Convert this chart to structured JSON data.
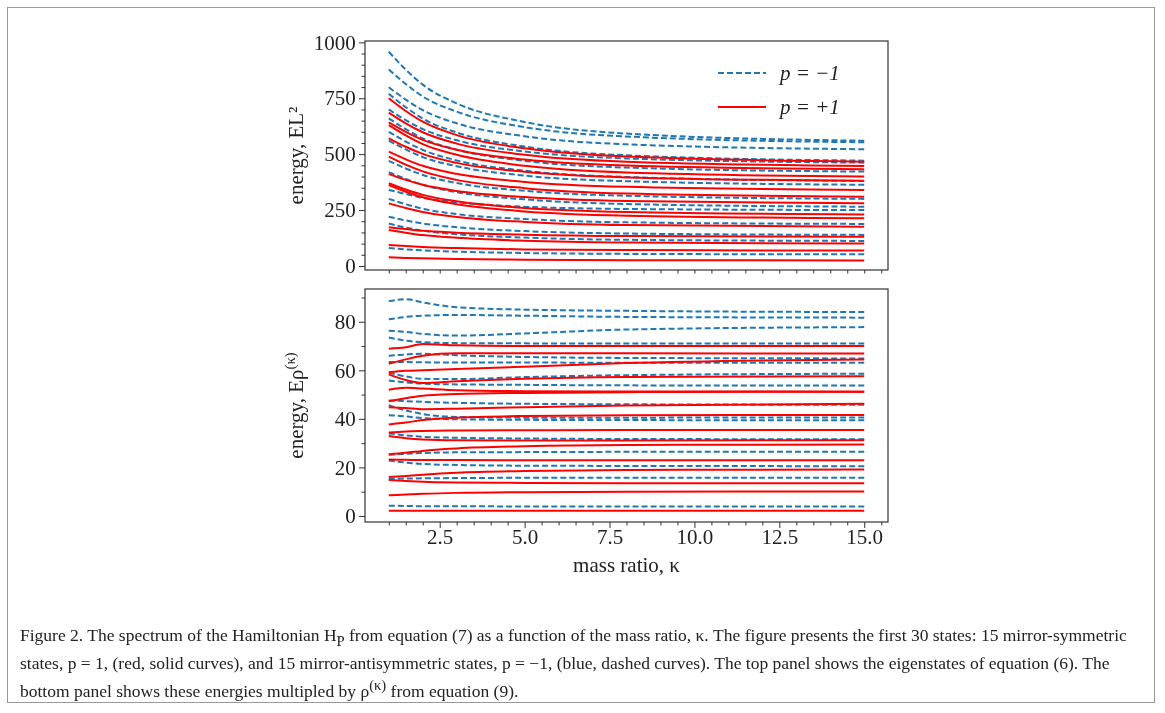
{
  "chart_data": [
    {
      "type": "line",
      "ylabel": "energy, EL²",
      "x": [
        1,
        1.5,
        2,
        3,
        5,
        8,
        15
      ],
      "xlim": [
        0.3,
        15.7
      ],
      "ylim": [
        -18,
        1006
      ],
      "xticks": [
        {
          "value": 1,
          "label": null
        },
        {
          "value": 1.5,
          "label": null
        },
        {
          "value": 2,
          "label": null
        },
        {
          "value": 2.5,
          "label": null
        },
        {
          "value": 3,
          "label": null
        },
        {
          "value": 3.5,
          "label": null
        },
        {
          "value": 4,
          "label": null
        },
        {
          "value": 4.5,
          "label": null
        },
        {
          "value": 5,
          "label": null
        },
        {
          "value": 5.5,
          "label": null
        },
        {
          "value": 6,
          "label": null
        },
        {
          "value": 6.5,
          "label": null
        },
        {
          "value": 7,
          "label": null
        },
        {
          "value": 7.5,
          "label": null
        },
        {
          "value": 8,
          "label": null
        },
        {
          "value": 8.5,
          "label": null
        },
        {
          "value": 9,
          "label": null
        },
        {
          "value": 9.5,
          "label": null
        },
        {
          "value": 10,
          "label": null
        },
        {
          "value": 10.5,
          "label": null
        },
        {
          "value": 11,
          "label": null
        },
        {
          "value": 11.5,
          "label": null
        },
        {
          "value": 12,
          "label": null
        },
        {
          "value": 12.5,
          "label": null
        },
        {
          "value": 13,
          "label": null
        },
        {
          "value": 13.5,
          "label": null
        },
        {
          "value": 14,
          "label": null
        },
        {
          "value": 14.5,
          "label": null
        },
        {
          "value": 15,
          "label": null
        },
        {
          "value": 15.5,
          "label": null
        }
      ],
      "yticks": [
        0,
        {
          "value": 50,
          "label": null
        },
        {
          "value": 100,
          "label": null
        },
        {
          "value": 150,
          "label": null
        },
        {
          "value": 200,
          "label": null
        },
        250,
        {
          "value": 300,
          "label": null
        },
        {
          "value": 350,
          "label": null
        },
        {
          "value": 400,
          "label": null
        },
        {
          "value": 450,
          "label": null
        },
        500,
        {
          "value": 550,
          "label": null
        },
        {
          "value": 600,
          "label": null
        },
        {
          "value": 650,
          "label": null
        },
        {
          "value": 700,
          "label": null
        },
        750,
        {
          "value": 800,
          "label": null
        },
        {
          "value": 850,
          "label": null
        },
        {
          "value": 900,
          "label": null
        },
        {
          "value": 950,
          "label": null
        },
        1000
      ],
      "tick_labels": "y",
      "legend": "top right",
      "series": [
        {
          "name": "p = −1",
          "color": "#1f77b4",
          "line_style": "dashed",
          "values": [
            958,
            878,
            811,
            727,
            644,
            592,
            560
          ]
        },
        {
          "color": "#1f77b4",
          "line_style": "dashed",
          "values": [
            879,
            814,
            758,
            690,
            621,
            579,
            553
          ]
        },
        {
          "color": "#1f77b4",
          "line_style": "dashed",
          "values": [
            799,
            744,
            697,
            638,
            580,
            544,
            522
          ]
        },
        {
          "color": "#1f77b4",
          "line_style": "dashed",
          "values": [
            770,
            710,
            659,
            597,
            534,
            495,
            471
          ]
        },
        {
          "color": "#1f77b4",
          "line_style": "dashed",
          "values": [
            700,
            652,
            612,
            562,
            512,
            481,
            462
          ]
        },
        {
          "color": "#1f77b4",
          "line_style": "dashed",
          "values": [
            660,
            612,
            570,
            520,
            470,
            440,
            422
          ]
        },
        {
          "color": "#1f77b4",
          "line_style": "dashed",
          "values": [
            600,
            556,
            519,
            472,
            426,
            398,
            380
          ]
        },
        {
          "color": "#1f77b4",
          "line_style": "dashed",
          "values": [
            560,
            521,
            487,
            446,
            404,
            379,
            363
          ]
        },
        {
          "color": "#1f77b4",
          "line_style": "dashed",
          "values": [
            470,
            436,
            407,
            371,
            336,
            314,
            300
          ]
        },
        {
          "color": "#1f77b4",
          "line_style": "dashed",
          "values": [
            420,
            389,
            363,
            330,
            298,
            277,
            265
          ]
        },
        {
          "color": "#1f77b4",
          "line_style": "dashed",
          "values": [
            340,
            322,
            305,
            285,
            265,
            255,
            250
          ]
        },
        {
          "color": "#1f77b4",
          "line_style": "dashed",
          "values": [
            300,
            276,
            256,
            232,
            210,
            195,
            188
          ]
        },
        {
          "color": "#1f77b4",
          "line_style": "dashed",
          "values": [
            220,
            204,
            190,
            173,
            156,
            145,
            139
          ]
        },
        {
          "color": "#1f77b4",
          "line_style": "dashed",
          "values": [
            190,
            172,
            158,
            142,
            127,
            117,
            112
          ]
        },
        {
          "color": "#1f77b4",
          "line_style": "dashed",
          "values": [
            80,
            74,
            70,
            64,
            58,
            54,
            52
          ]
        },
        {
          "name": "p = +1",
          "color": "#ff0000",
          "line_style": "solid",
          "values": [
            750,
            693,
            645,
            585,
            526,
            489,
            466
          ]
        },
        {
          "color": "#ff0000",
          "line_style": "solid",
          "values": [
            686,
            638,
            598,
            547,
            497,
            466,
            447
          ]
        },
        {
          "color": "#ff0000",
          "line_style": "solid",
          "values": [
            642,
            600,
            564,
            520,
            476,
            449,
            432
          ]
        },
        {
          "color": "#ff0000",
          "line_style": "solid",
          "values": [
            630,
            584,
            545,
            497,
            448,
            418,
            400
          ]
        },
        {
          "color": "#ff0000",
          "line_style": "solid",
          "values": [
            571,
            533,
            501,
            461,
            421,
            396,
            381
          ]
        },
        {
          "color": "#ff0000",
          "line_style": "solid",
          "values": [
            511,
            477,
            448,
            412,
            376,
            354,
            340
          ]
        },
        {
          "color": "#ff0000",
          "line_style": "solid",
          "values": [
            489,
            453,
            423,
            385,
            348,
            324,
            310
          ]
        },
        {
          "color": "#ff0000",
          "line_style": "solid",
          "values": [
            411,
            385,
            363,
            335,
            308,
            290,
            280
          ]
        },
        {
          "color": "#ff0000",
          "line_style": "solid",
          "values": [
            370,
            342,
            318,
            289,
            259,
            241,
            230
          ]
        },
        {
          "color": "#ff0000",
          "line_style": "solid",
          "values": [
            362,
            332,
            307,
            276,
            244,
            225,
            213
          ]
        },
        {
          "color": "#ff0000",
          "line_style": "solid",
          "values": [
            280,
            259,
            241,
            219,
            197,
            183,
            175
          ]
        },
        {
          "color": "#ff0000",
          "line_style": "solid",
          "values": [
            173,
            165,
            157,
            149,
            140,
            134,
            131
          ]
        },
        {
          "color": "#ff0000",
          "line_style": "solid",
          "values": [
            161,
            149,
            138,
            126,
            113,
            105,
            100
          ]
        },
        {
          "color": "#ff0000",
          "line_style": "solid",
          "values": [
            94,
            89,
            85,
            80,
            74,
            71,
            69
          ]
        },
        {
          "color": "#ff0000",
          "line_style": "solid",
          "values": [
            39,
            36,
            34,
            31,
            28,
            26,
            25
          ]
        }
      ]
    },
    {
      "type": "line",
      "xlabel": "mass ratio, κ",
      "ylabel": "energy, Eρ$^{(κ)}$",
      "x": [
        1,
        1.5,
        2,
        3,
        5,
        8,
        15
      ],
      "xlim": [
        0.3,
        15.7
      ],
      "ylim": [
        -2.5,
        93.5
      ],
      "xticks": [
        {
          "value": 1,
          "label": null
        },
        {
          "value": 1.5,
          "label": null
        },
        {
          "value": 2,
          "label": null
        },
        {
          "value": 2.5,
          "label": "2.5"
        },
        {
          "value": 3,
          "label": null
        },
        {
          "value": 3.5,
          "label": null
        },
        {
          "value": 4,
          "label": null
        },
        {
          "value": 4.5,
          "label": null
        },
        {
          "value": 5,
          "label": "5.0"
        },
        {
          "value": 5.5,
          "label": null
        },
        {
          "value": 6,
          "label": null
        },
        {
          "value": 6.5,
          "label": null
        },
        {
          "value": 7,
          "label": null
        },
        {
          "value": 7.5,
          "label": "7.5"
        },
        {
          "value": 8,
          "label": null
        },
        {
          "value": 8.5,
          "label": null
        },
        {
          "value": 9,
          "label": null
        },
        {
          "value": 9.5,
          "label": null
        },
        {
          "value": 10,
          "label": "10.0"
        },
        {
          "value": 10.5,
          "label": null
        },
        {
          "value": 11,
          "label": null
        },
        {
          "value": 11.5,
          "label": null
        },
        {
          "value": 12,
          "label": null
        },
        {
          "value": 12.5,
          "label": "12.5"
        },
        {
          "value": 13,
          "label": null
        },
        {
          "value": 13.5,
          "label": null
        },
        {
          "value": 14,
          "label": null
        },
        {
          "value": 14.5,
          "label": null
        },
        {
          "value": 15,
          "label": "15.0"
        },
        {
          "value": 15.5,
          "label": null
        }
      ],
      "yticks": [
        0,
        {
          "value": 10,
          "label": null
        },
        20,
        {
          "value": 30,
          "label": null
        },
        40,
        {
          "value": 50,
          "label": null
        },
        60,
        {
          "value": 70,
          "label": null
        },
        80,
        {
          "value": 90,
          "label": null
        }
      ],
      "annotations": [
        "Figure 2. The spectrum of the Hamiltonian H$_{P}$ from equation (7) as a function of the mass ratio, κ. The figure presents the first 30 states: 15 mirror-symmetric states, p = 1, (red, solid curves), and 15 mirror-antisymmetric states, p = −1, (blue, dashed curves). The top panel shows the eigenstates of equation (6). The bottom panel shows these energies multipled by ρ$^{(κ)}$ from equation (9)."
      ],
      "series": [
        {
          "color": "#1f77b4",
          "line_style": "dashed",
          "values": [
            88.5,
            89.3,
            88.0,
            86,
            85,
            84.5,
            84
          ]
        },
        {
          "color": "#1f77b4",
          "line_style": "dashed",
          "values": [
            81,
            82,
            82.5,
            82.8,
            82.5,
            82,
            81.7
          ]
        },
        {
          "color": "#1f77b4",
          "line_style": "dashed",
          "values": [
            76.3,
            75.8,
            75,
            74.3,
            75.2,
            76.8,
            77.8
          ]
        },
        {
          "color": "#1f77b4",
          "line_style": "dashed",
          "values": [
            73.5,
            72.2,
            71.6,
            71.2,
            71.1,
            71,
            71
          ]
        },
        {
          "color": "#1f77b4",
          "line_style": "dashed",
          "values": [
            66,
            66.5,
            66.8,
            66.2,
            65.5,
            65.1,
            64.9
          ]
        },
        {
          "color": "#1f77b4",
          "line_style": "dashed",
          "values": [
            63.4,
            63.4,
            63.3,
            63.2,
            63.2,
            63.1,
            63.1
          ]
        },
        {
          "color": "#1f77b4",
          "line_style": "dashed",
          "values": [
            59,
            57.5,
            56.5,
            56.4,
            57.2,
            58,
            58.6
          ]
        },
        {
          "color": "#1f77b4",
          "line_style": "dashed",
          "values": [
            55.8,
            55,
            54.5,
            54.2,
            54,
            53.8,
            53.7
          ]
        },
        {
          "color": "#1f77b4",
          "line_style": "dashed",
          "values": [
            47.6,
            47.3,
            47,
            46.6,
            46.2,
            46,
            45.8
          ]
        },
        {
          "color": "#1f77b4",
          "line_style": "dashed",
          "values": [
            45.6,
            43.5,
            42,
            40.8,
            40.5,
            40.5,
            40.6
          ]
        },
        {
          "color": "#1f77b4",
          "line_style": "dashed",
          "values": [
            41.5,
            41,
            40.3,
            39.8,
            39.6,
            39.5,
            39.4
          ]
        },
        {
          "color": "#1f77b4",
          "line_style": "dashed",
          "values": [
            34,
            33.2,
            32.6,
            32.2,
            31.9,
            31.7,
            31.6
          ]
        },
        {
          "color": "#1f77b4",
          "line_style": "dashed",
          "values": [
            25.2,
            25.6,
            25.9,
            26.2,
            26.3,
            26.4,
            26.4
          ]
        },
        {
          "color": "#1f77b4",
          "line_style": "dashed",
          "values": [
            22.8,
            22,
            21.4,
            21,
            20.7,
            20.6,
            20.5
          ]
        },
        {
          "color": "#1f77b4",
          "line_style": "dashed",
          "values": [
            15.2,
            15.4,
            15.5,
            15.6,
            15.7,
            15.7,
            15.7
          ]
        },
        {
          "color": "#1f77b4",
          "line_style": "dashed",
          "values": [
            4.2,
            4.1,
            4,
            4,
            3.9,
            3.9,
            3.9
          ]
        },
        {
          "color": "#ff0000",
          "line_style": "solid",
          "values": [
            68.9,
            69.5,
            70.8,
            70.3,
            70,
            70,
            70
          ]
        },
        {
          "color": "#ff0000",
          "line_style": "solid",
          "values": [
            62.7,
            64.5,
            66,
            67,
            67,
            67,
            66.9
          ]
        },
        {
          "color": "#ff0000",
          "line_style": "solid",
          "values": [
            59.2,
            59.8,
            60,
            60.5,
            61.5,
            63,
            64.5
          ]
        },
        {
          "color": "#ff0000",
          "line_style": "solid",
          "values": [
            58.3,
            56,
            54.8,
            55.5,
            56.5,
            57.2,
            57.6
          ]
        },
        {
          "color": "#ff0000",
          "line_style": "solid",
          "values": [
            52,
            52.8,
            52.5,
            51.8,
            51.4,
            51.3,
            51.2
          ]
        },
        {
          "color": "#ff0000",
          "line_style": "solid",
          "values": [
            47.2,
            48.5,
            49.5,
            50.2,
            50.7,
            51,
            51.2
          ]
        },
        {
          "color": "#ff0000",
          "line_style": "solid",
          "values": [
            44.8,
            44.5,
            44,
            44.2,
            44.8,
            45.5,
            46.2
          ]
        },
        {
          "color": "#ff0000",
          "line_style": "solid",
          "values": [
            37.7,
            38.5,
            39.5,
            40.5,
            41.2,
            41.5,
            41.6
          ]
        },
        {
          "color": "#ff0000",
          "line_style": "solid",
          "values": [
            34.4,
            34.8,
            35,
            35.2,
            35.3,
            35.4,
            35.4
          ]
        },
        {
          "color": "#ff0000",
          "line_style": "solid",
          "values": [
            32.9,
            32,
            31.5,
            31.2,
            31.1,
            31.1,
            31.2
          ]
        },
        {
          "color": "#ff0000",
          "line_style": "solid",
          "values": [
            25.4,
            26,
            26.8,
            27.8,
            28.7,
            29.2,
            29.4
          ]
        },
        {
          "color": "#ff0000",
          "line_style": "solid",
          "values": [
            23.2,
            23.1,
            23,
            23,
            22.9,
            22.9,
            22.9
          ]
        },
        {
          "color": "#ff0000",
          "line_style": "solid",
          "values": [
            16,
            16.5,
            17,
            17.8,
            18.5,
            18.9,
            19.1
          ]
        },
        {
          "color": "#ff0000",
          "line_style": "solid",
          "values": [
            14.8,
            14.4,
            14.1,
            13.8,
            13.6,
            13.5,
            13.5
          ]
        },
        {
          "color": "#ff0000",
          "line_style": "solid",
          "values": [
            8.5,
            8.8,
            9.1,
            9.5,
            9.8,
            10,
            10.1
          ]
        },
        {
          "color": "#ff0000",
          "line_style": "solid",
          "values": [
            2.1,
            2.1,
            2.1,
            2.1,
            2.1,
            2.1,
            2.1
          ]
        }
      ]
    }
  ]
}
